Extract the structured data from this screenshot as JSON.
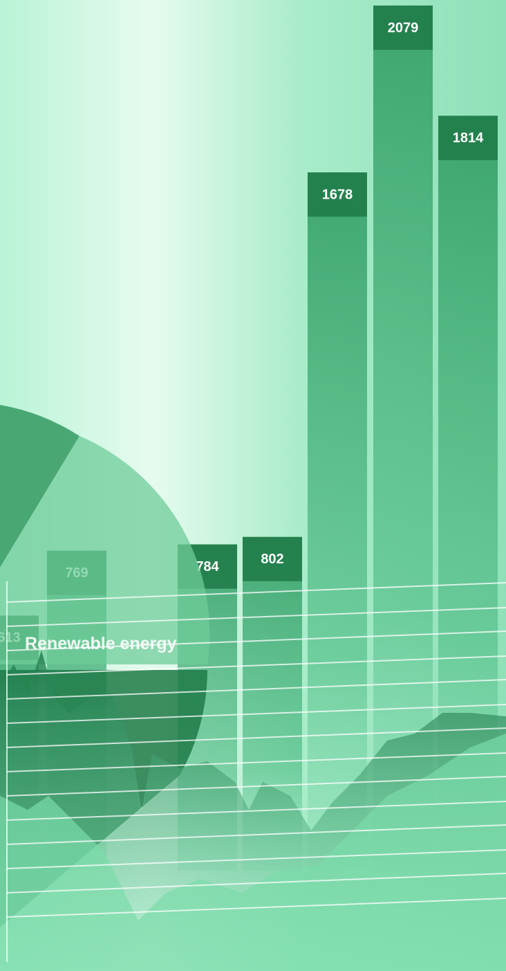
{
  "chart_data": {
    "type": "bar",
    "title": "Renewable energy",
    "categories": [
      null,
      null,
      null,
      null,
      null,
      null,
      null
    ],
    "values": [
      613,
      769,
      784,
      802,
      1678,
      2079,
      1814
    ],
    "color": "#2e9a62"
  }
}
